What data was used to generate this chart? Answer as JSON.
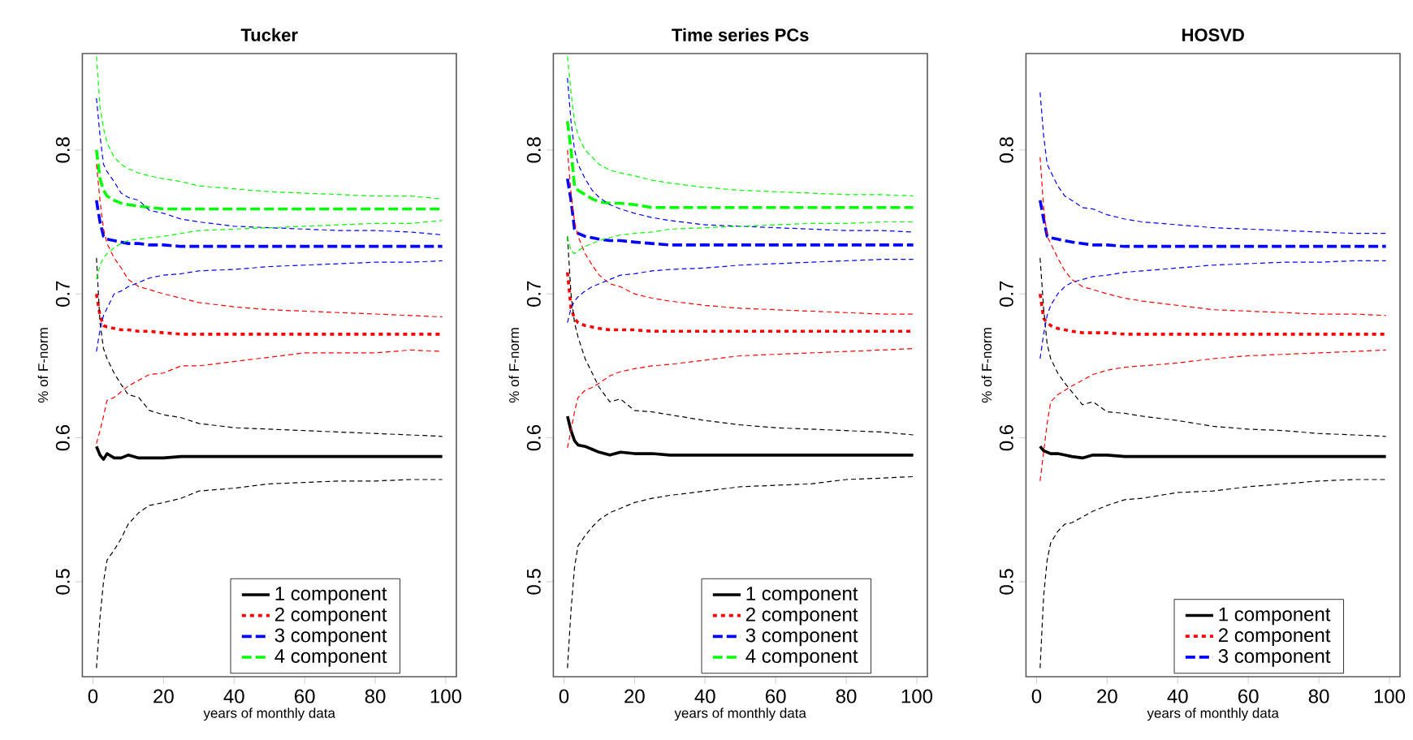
{
  "chart_data": [
    {
      "type": "line",
      "title": "Tucker",
      "xlabel": "years of monthly data",
      "ylabel": "% of F-norm",
      "xlim": [
        -3,
        103
      ],
      "ylim": [
        0.434,
        0.867
      ],
      "xticks": [
        0,
        20,
        40,
        60,
        80,
        100
      ],
      "yticks": [
        0.5,
        0.6,
        0.7,
        0.8
      ],
      "legend": "bottom",
      "x": [
        1,
        2,
        3,
        4,
        6,
        8,
        10,
        13,
        16,
        20,
        25,
        30,
        40,
        50,
        60,
        70,
        80,
        90,
        99
      ],
      "series": [
        {
          "name": "1 component",
          "color": "#000000",
          "line_style": "solid",
          "values": [
            0.594,
            0.588,
            0.585,
            0.589,
            0.586,
            0.586,
            0.588,
            0.586,
            0.586,
            0.586,
            0.587,
            0.587,
            0.587,
            0.587,
            0.587,
            0.587,
            0.587,
            0.587,
            0.587
          ]
        },
        {
          "name": "2 component",
          "color": "#ff0000",
          "line_style": "dotted",
          "values": [
            0.7,
            0.685,
            0.678,
            0.677,
            0.676,
            0.675,
            0.675,
            0.674,
            0.674,
            0.673,
            0.672,
            0.672,
            0.672,
            0.672,
            0.672,
            0.672,
            0.672,
            0.672,
            0.672
          ]
        },
        {
          "name": "3 component",
          "color": "#0000ff",
          "line_style": "dashed",
          "values": [
            0.765,
            0.75,
            0.74,
            0.738,
            0.737,
            0.736,
            0.735,
            0.735,
            0.734,
            0.734,
            0.733,
            0.733,
            0.733,
            0.733,
            0.733,
            0.733,
            0.733,
            0.733,
            0.733
          ]
        },
        {
          "name": "4 component",
          "color": "#00ff00",
          "line_style": "dashed",
          "values": [
            0.8,
            0.78,
            0.772,
            0.768,
            0.765,
            0.763,
            0.762,
            0.761,
            0.76,
            0.759,
            0.759,
            0.759,
            0.759,
            0.759,
            0.759,
            0.759,
            0.759,
            0.759,
            0.759
          ]
        },
        {
          "color": "#000000",
          "line_style": "dashed",
          "values": [
            0.725,
            0.68,
            0.662,
            0.655,
            0.645,
            0.637,
            0.63,
            0.628,
            0.619,
            0.616,
            0.614,
            0.61,
            0.607,
            0.606,
            0.605,
            0.604,
            0.603,
            0.602,
            0.601
          ]
        },
        {
          "color": "#000000",
          "line_style": "dashed",
          "values": [
            0.44,
            0.475,
            0.5,
            0.515,
            0.522,
            0.53,
            0.54,
            0.548,
            0.553,
            0.555,
            0.558,
            0.563,
            0.565,
            0.568,
            0.569,
            0.57,
            0.57,
            0.571,
            0.571
          ]
        },
        {
          "color": "#ff0000",
          "line_style": "dashed",
          "values": [
            0.79,
            0.765,
            0.745,
            0.735,
            0.725,
            0.718,
            0.71,
            0.705,
            0.703,
            0.7,
            0.697,
            0.694,
            0.691,
            0.689,
            0.688,
            0.687,
            0.686,
            0.685,
            0.684
          ]
        },
        {
          "color": "#ff0000",
          "line_style": "dashed",
          "values": [
            0.596,
            0.605,
            0.615,
            0.626,
            0.628,
            0.632,
            0.636,
            0.64,
            0.644,
            0.645,
            0.65,
            0.65,
            0.653,
            0.656,
            0.659,
            0.659,
            0.659,
            0.661,
            0.66
          ]
        },
        {
          "color": "#0000ff",
          "line_style": "dashed",
          "values": [
            0.836,
            0.81,
            0.79,
            0.785,
            0.778,
            0.77,
            0.767,
            0.765,
            0.758,
            0.756,
            0.752,
            0.75,
            0.747,
            0.746,
            0.745,
            0.744,
            0.744,
            0.743,
            0.741
          ]
        },
        {
          "color": "#0000ff",
          "line_style": "dashed",
          "values": [
            0.66,
            0.675,
            0.685,
            0.69,
            0.7,
            0.702,
            0.705,
            0.708,
            0.711,
            0.713,
            0.714,
            0.716,
            0.717,
            0.719,
            0.72,
            0.721,
            0.722,
            0.722,
            0.723
          ]
        },
        {
          "color": "#00ff00",
          "line_style": "dashed",
          "values": [
            0.865,
            0.83,
            0.815,
            0.805,
            0.795,
            0.79,
            0.787,
            0.784,
            0.782,
            0.78,
            0.778,
            0.775,
            0.773,
            0.771,
            0.77,
            0.769,
            0.768,
            0.768,
            0.766
          ]
        },
        {
          "color": "#00ff00",
          "line_style": "dashed",
          "values": [
            0.71,
            0.72,
            0.725,
            0.728,
            0.732,
            0.735,
            0.737,
            0.738,
            0.739,
            0.74,
            0.742,
            0.744,
            0.745,
            0.746,
            0.747,
            0.748,
            0.749,
            0.749,
            0.751
          ]
        }
      ]
    },
    {
      "type": "line",
      "title": "Time series PCs",
      "xlabel": "years of monthly data",
      "ylabel": "% of F-norm",
      "xlim": [
        -3,
        103
      ],
      "ylim": [
        0.434,
        0.867
      ],
      "xticks": [
        0,
        20,
        40,
        60,
        80,
        100
      ],
      "yticks": [
        0.5,
        0.6,
        0.7,
        0.8
      ],
      "legend": "bottom",
      "x": [
        1,
        2,
        3,
        4,
        6,
        8,
        10,
        13,
        16,
        20,
        25,
        30,
        40,
        50,
        60,
        70,
        80,
        90,
        99
      ],
      "series": [
        {
          "name": "1 component",
          "color": "#000000",
          "line_style": "solid",
          "values": [
            0.615,
            0.605,
            0.598,
            0.595,
            0.594,
            0.592,
            0.59,
            0.588,
            0.59,
            0.589,
            0.589,
            0.588,
            0.588,
            0.588,
            0.588,
            0.588,
            0.588,
            0.588,
            0.588
          ]
        },
        {
          "name": "2 component",
          "color": "#ff0000",
          "line_style": "dotted",
          "values": [
            0.715,
            0.69,
            0.683,
            0.68,
            0.678,
            0.677,
            0.676,
            0.675,
            0.675,
            0.675,
            0.674,
            0.674,
            0.674,
            0.674,
            0.674,
            0.674,
            0.674,
            0.674,
            0.674
          ]
        },
        {
          "name": "3 component",
          "color": "#0000ff",
          "line_style": "dashed",
          "values": [
            0.78,
            0.765,
            0.745,
            0.742,
            0.74,
            0.739,
            0.738,
            0.737,
            0.737,
            0.736,
            0.735,
            0.734,
            0.734,
            0.734,
            0.734,
            0.734,
            0.734,
            0.734,
            0.734
          ]
        },
        {
          "name": "4 component",
          "color": "#00ff00",
          "line_style": "dashed",
          "values": [
            0.82,
            0.8,
            0.775,
            0.772,
            0.769,
            0.766,
            0.764,
            0.763,
            0.763,
            0.762,
            0.76,
            0.76,
            0.76,
            0.76,
            0.76,
            0.76,
            0.76,
            0.76,
            0.76
          ]
        },
        {
          "color": "#000000",
          "line_style": "dashed",
          "values": [
            0.74,
            0.7,
            0.68,
            0.67,
            0.655,
            0.645,
            0.635,
            0.625,
            0.627,
            0.619,
            0.618,
            0.616,
            0.612,
            0.609,
            0.607,
            0.606,
            0.605,
            0.604,
            0.602
          ]
        },
        {
          "color": "#000000",
          "line_style": "dashed",
          "values": [
            0.44,
            0.48,
            0.51,
            0.525,
            0.532,
            0.538,
            0.543,
            0.548,
            0.551,
            0.555,
            0.558,
            0.56,
            0.563,
            0.566,
            0.567,
            0.568,
            0.571,
            0.572,
            0.573
          ]
        },
        {
          "color": "#ff0000",
          "line_style": "dashed",
          "values": [
            0.8,
            0.77,
            0.75,
            0.74,
            0.728,
            0.72,
            0.713,
            0.707,
            0.705,
            0.7,
            0.697,
            0.695,
            0.692,
            0.69,
            0.689,
            0.688,
            0.687,
            0.686,
            0.686
          ]
        },
        {
          "color": "#ff0000",
          "line_style": "dashed",
          "values": [
            0.593,
            0.605,
            0.618,
            0.628,
            0.633,
            0.635,
            0.638,
            0.643,
            0.646,
            0.648,
            0.65,
            0.651,
            0.654,
            0.657,
            0.658,
            0.659,
            0.66,
            0.661,
            0.662
          ]
        },
        {
          "color": "#0000ff",
          "line_style": "dashed",
          "values": [
            0.85,
            0.82,
            0.8,
            0.79,
            0.78,
            0.772,
            0.767,
            0.762,
            0.759,
            0.756,
            0.753,
            0.751,
            0.748,
            0.747,
            0.746,
            0.745,
            0.744,
            0.744,
            0.743
          ]
        },
        {
          "color": "#0000ff",
          "line_style": "dashed",
          "values": [
            0.68,
            0.69,
            0.695,
            0.698,
            0.702,
            0.705,
            0.707,
            0.71,
            0.713,
            0.714,
            0.716,
            0.717,
            0.718,
            0.72,
            0.721,
            0.722,
            0.723,
            0.724,
            0.724
          ]
        },
        {
          "color": "#00ff00",
          "line_style": "dashed",
          "values": [
            0.865,
            0.84,
            0.82,
            0.81,
            0.8,
            0.795,
            0.79,
            0.786,
            0.784,
            0.782,
            0.779,
            0.777,
            0.774,
            0.772,
            0.771,
            0.77,
            0.769,
            0.769,
            0.768
          ]
        },
        {
          "color": "#00ff00",
          "line_style": "dashed",
          "values": [
            0.74,
            0.73,
            0.728,
            0.73,
            0.733,
            0.735,
            0.737,
            0.739,
            0.741,
            0.742,
            0.743,
            0.745,
            0.746,
            0.747,
            0.748,
            0.749,
            0.749,
            0.75,
            0.75
          ]
        }
      ]
    },
    {
      "type": "line",
      "title": "HOSVD",
      "xlabel": "years of monthly data",
      "ylabel": "% of F-norm",
      "xlim": [
        -3,
        103
      ],
      "ylim": [
        0.434,
        0.867
      ],
      "xticks": [
        0,
        20,
        40,
        60,
        80,
        100
      ],
      "yticks": [
        0.5,
        0.6,
        0.7,
        0.8
      ],
      "legend": "bottom",
      "x": [
        1,
        2,
        3,
        4,
        6,
        8,
        10,
        13,
        16,
        20,
        25,
        30,
        40,
        50,
        60,
        70,
        80,
        90,
        99
      ],
      "series": [
        {
          "name": "1 component",
          "color": "#000000",
          "line_style": "solid",
          "values": [
            0.594,
            0.591,
            0.59,
            0.589,
            0.589,
            0.588,
            0.587,
            0.586,
            0.588,
            0.588,
            0.587,
            0.587,
            0.587,
            0.587,
            0.587,
            0.587,
            0.587,
            0.587,
            0.587
          ]
        },
        {
          "name": "2 component",
          "color": "#ff0000",
          "line_style": "dotted",
          "values": [
            0.7,
            0.683,
            0.68,
            0.678,
            0.676,
            0.675,
            0.674,
            0.673,
            0.673,
            0.673,
            0.672,
            0.672,
            0.672,
            0.672,
            0.672,
            0.672,
            0.672,
            0.672,
            0.672
          ]
        },
        {
          "name": "3 component",
          "color": "#0000ff",
          "line_style": "dashed",
          "values": [
            0.765,
            0.752,
            0.74,
            0.739,
            0.738,
            0.737,
            0.736,
            0.735,
            0.734,
            0.734,
            0.733,
            0.733,
            0.733,
            0.733,
            0.733,
            0.733,
            0.733,
            0.733,
            0.733
          ]
        },
        {
          "color": "#000000",
          "line_style": "dashed",
          "values": [
            0.725,
            0.69,
            0.665,
            0.655,
            0.645,
            0.638,
            0.632,
            0.623,
            0.625,
            0.618,
            0.617,
            0.615,
            0.612,
            0.608,
            0.606,
            0.605,
            0.603,
            0.602,
            0.601
          ]
        },
        {
          "color": "#000000",
          "line_style": "dashed",
          "values": [
            0.44,
            0.49,
            0.515,
            0.527,
            0.535,
            0.54,
            0.541,
            0.545,
            0.549,
            0.553,
            0.557,
            0.558,
            0.562,
            0.563,
            0.566,
            0.568,
            0.57,
            0.571,
            0.571
          ]
        },
        {
          "color": "#ff0000",
          "line_style": "dashed",
          "values": [
            0.795,
            0.76,
            0.74,
            0.735,
            0.725,
            0.716,
            0.71,
            0.705,
            0.703,
            0.7,
            0.697,
            0.695,
            0.692,
            0.689,
            0.688,
            0.687,
            0.686,
            0.686,
            0.685
          ]
        },
        {
          "color": "#ff0000",
          "line_style": "dashed",
          "values": [
            0.57,
            0.59,
            0.61,
            0.625,
            0.63,
            0.633,
            0.636,
            0.64,
            0.644,
            0.647,
            0.649,
            0.65,
            0.652,
            0.655,
            0.657,
            0.658,
            0.659,
            0.66,
            0.661
          ]
        },
        {
          "color": "#0000ff",
          "line_style": "dashed",
          "values": [
            0.84,
            0.81,
            0.79,
            0.785,
            0.775,
            0.768,
            0.765,
            0.76,
            0.759,
            0.755,
            0.752,
            0.75,
            0.748,
            0.746,
            0.745,
            0.744,
            0.743,
            0.742,
            0.742
          ]
        },
        {
          "color": "#0000ff",
          "line_style": "dashed",
          "values": [
            0.655,
            0.672,
            0.685,
            0.692,
            0.7,
            0.705,
            0.708,
            0.71,
            0.712,
            0.713,
            0.715,
            0.716,
            0.718,
            0.72,
            0.721,
            0.722,
            0.722,
            0.723,
            0.723
          ]
        }
      ]
    }
  ]
}
